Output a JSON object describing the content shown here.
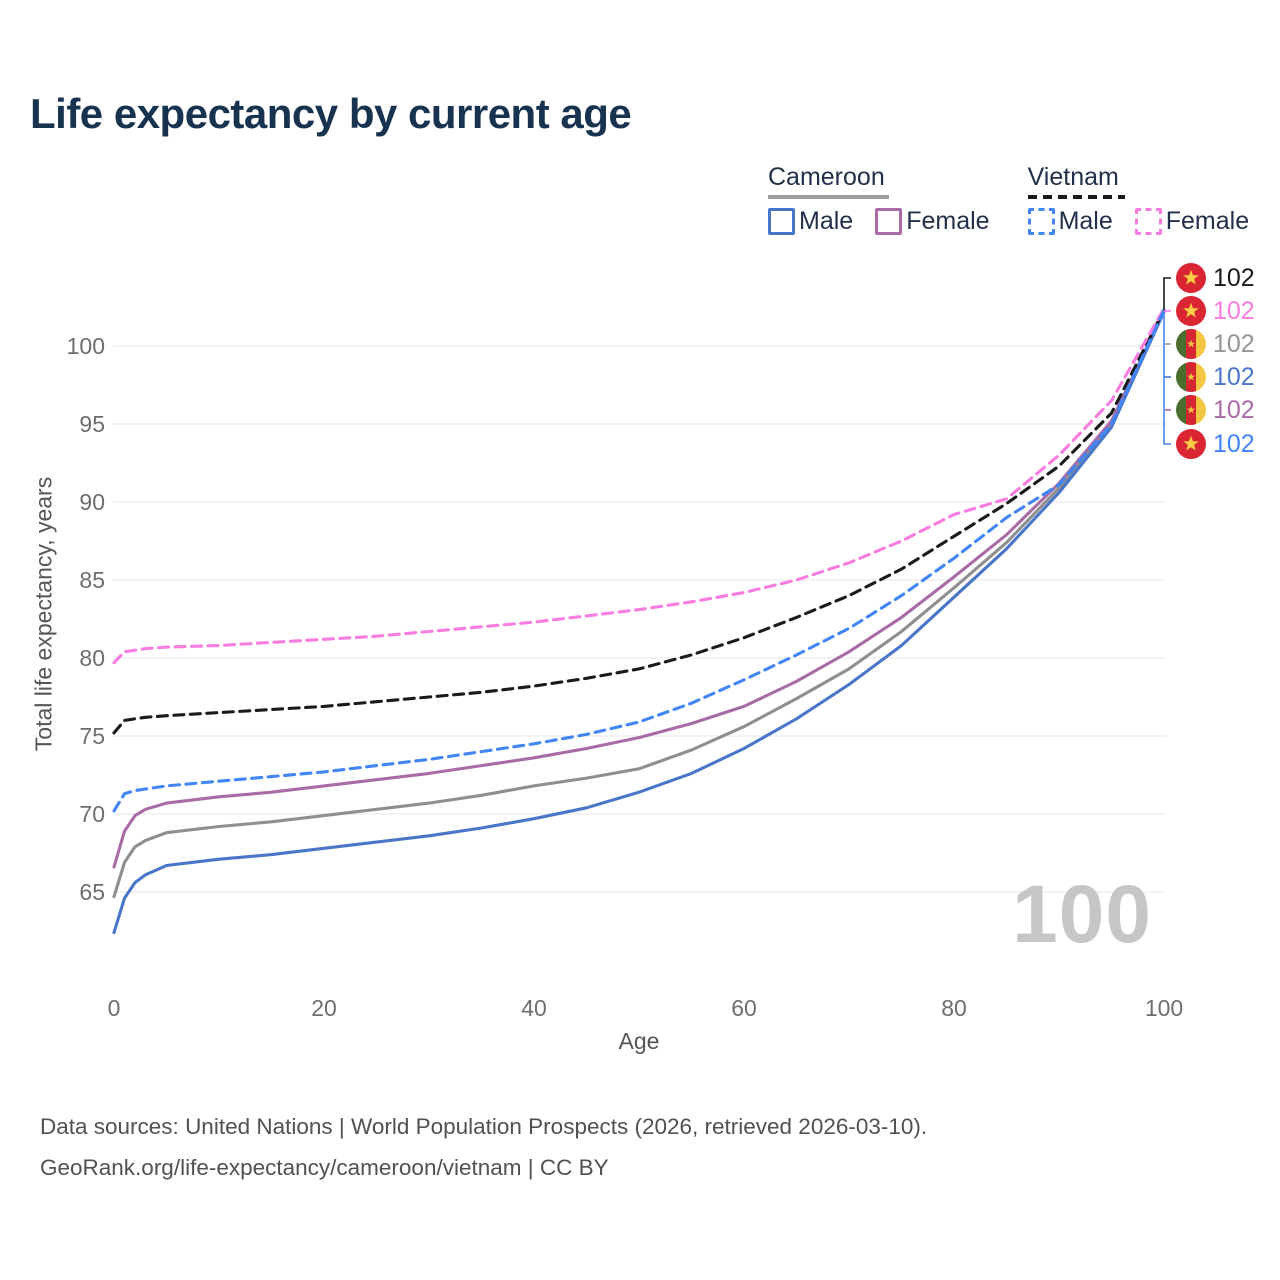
{
  "title": "Life expectancy by current age",
  "watermark": "100",
  "legend": {
    "groups": [
      {
        "title": "Cameroon",
        "line_style": "solid",
        "underline_color": "#9e9e9e",
        "items": [
          {
            "label": "Male",
            "color": "#4a76c9",
            "dash": false
          },
          {
            "label": "Female",
            "color": "#a96ba6",
            "dash": false
          }
        ]
      },
      {
        "title": "Vietnam",
        "line_style": "dashed",
        "underline_color": "#1a1a1a",
        "items": [
          {
            "label": "Male",
            "color": "#4285f4",
            "dash": true
          },
          {
            "label": "Female",
            "color": "#f97ce0",
            "dash": true
          }
        ]
      }
    ]
  },
  "axes": {
    "y_label": "Total life expectancy, years",
    "x_label": "Age",
    "y_ticks": [
      65,
      70,
      75,
      80,
      85,
      90,
      95,
      100
    ],
    "x_ticks": [
      0,
      20,
      40,
      60,
      80,
      100
    ]
  },
  "end_labels": [
    {
      "flag": "vietnam",
      "value": "102",
      "color": "#1a1a1a"
    },
    {
      "flag": "vietnam",
      "value": "102",
      "color": "#f97ce0"
    },
    {
      "flag": "cameroon",
      "value": "102",
      "color": "#969696"
    },
    {
      "flag": "cameroon",
      "value": "102",
      "color": "#4a76c9"
    },
    {
      "flag": "cameroon",
      "value": "102",
      "color": "#a96ba6"
    },
    {
      "flag": "vietnam",
      "value": "102",
      "color": "#4285f4"
    }
  ],
  "footer": {
    "line1": "Data sources: United Nations | World Population Prospects (2026, retrieved 2026-03-10).",
    "line2": "GeoRank.org/life-expectancy/cameroon/vietnam | CC BY"
  },
  "chart_data": {
    "type": "line",
    "title": "Life expectancy by current age",
    "xlabel": "Age",
    "ylabel": "Total life expectancy, years",
    "xlim": [
      0,
      100
    ],
    "ylim": [
      62,
      103
    ],
    "grid": true,
    "legend_position": "top-right",
    "x": [
      0,
      1,
      2,
      3,
      5,
      10,
      15,
      20,
      25,
      30,
      35,
      40,
      45,
      50,
      55,
      60,
      65,
      70,
      75,
      80,
      85,
      90,
      95,
      100
    ],
    "series": [
      {
        "name": "Cameroon All",
        "country": "Cameroon",
        "color": "#8f8f8f",
        "dash": false,
        "values": [
          64.7,
          66.9,
          67.9,
          68.3,
          68.8,
          69.2,
          69.5,
          69.9,
          70.3,
          70.7,
          71.2,
          71.8,
          72.3,
          72.9,
          74.1,
          75.6,
          77.4,
          79.3,
          81.7,
          84.5,
          87.4,
          90.9,
          95.0,
          102.2
        ]
      },
      {
        "name": "Cameroon Female",
        "country": "Cameroon",
        "color": "#a96ba6",
        "dash": false,
        "values": [
          66.6,
          68.9,
          69.9,
          70.3,
          70.7,
          71.1,
          71.4,
          71.8,
          72.2,
          72.6,
          73.1,
          73.6,
          74.2,
          74.9,
          75.8,
          76.9,
          78.5,
          80.4,
          82.6,
          85.2,
          87.9,
          91.2,
          95.2,
          102.2
        ]
      },
      {
        "name": "Cameroon Male",
        "country": "Cameroon",
        "color": "#4a76c9",
        "dash": false,
        "values": [
          62.4,
          64.6,
          65.6,
          66.1,
          66.7,
          67.1,
          67.4,
          67.8,
          68.2,
          68.6,
          69.1,
          69.7,
          70.4,
          71.4,
          72.6,
          74.2,
          76.1,
          78.3,
          80.8,
          83.9,
          87.0,
          90.6,
          94.8,
          102.2
        ]
      },
      {
        "name": "Vietnam All",
        "country": "Vietnam",
        "color": "#1a1a1a",
        "dash": true,
        "values": [
          75.2,
          76.0,
          76.1,
          76.2,
          76.3,
          76.5,
          76.7,
          76.9,
          77.2,
          77.5,
          77.8,
          78.2,
          78.7,
          79.3,
          80.2,
          81.3,
          82.6,
          84.0,
          85.7,
          87.8,
          89.9,
          92.3,
          95.7,
          102.3
        ]
      },
      {
        "name": "Vietnam Female",
        "country": "Vietnam",
        "color": "#f97ce0",
        "dash": true,
        "values": [
          79.7,
          80.4,
          80.5,
          80.6,
          80.7,
          80.8,
          81.0,
          81.2,
          81.4,
          81.7,
          82.0,
          82.3,
          82.7,
          83.1,
          83.6,
          84.2,
          85.0,
          86.1,
          87.5,
          89.2,
          90.2,
          93.0,
          96.5,
          102.4
        ]
      },
      {
        "name": "Vietnam Male",
        "country": "Vietnam",
        "color": "#4285f4",
        "dash": true,
        "values": [
          70.2,
          71.3,
          71.5,
          71.6,
          71.8,
          72.1,
          72.4,
          72.7,
          73.1,
          73.5,
          74.0,
          74.5,
          75.1,
          75.9,
          77.1,
          78.6,
          80.2,
          81.9,
          84.0,
          86.4,
          89.0,
          91.1,
          95.0,
          102.3
        ]
      }
    ]
  }
}
